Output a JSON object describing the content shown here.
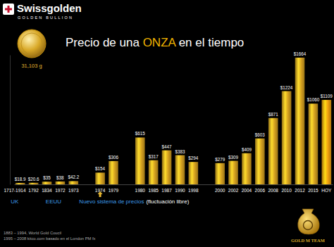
{
  "header": {
    "brand": "Swissgolden",
    "tagline": "GOLDEN BULLION",
    "coin_label": "31,103 g"
  },
  "footnotes": [
    "1883 – 1994, World Gold Coucil",
    "1995 – 2008 kitco.com basado en el London PM fx"
  ],
  "logo_text": "GOLD M TEAM",
  "chart_data": {
    "type": "bar",
    "title": "Precio de una ONZA en el tiempo",
    "categories": [
      "1717-1914",
      "1792",
      "1834",
      "1972",
      "1973",
      null,
      "1974",
      "1979",
      null,
      "1980",
      "1985",
      "1987",
      "1990",
      "1998",
      null,
      "2000",
      "2002",
      "2004",
      "2006",
      "2008",
      "2010",
      "2012",
      "2015",
      "HOY"
    ],
    "values": [
      18.9,
      20.6,
      35,
      38,
      42.2,
      null,
      154,
      306,
      null,
      615,
      317,
      447,
      383,
      294,
      null,
      279,
      309,
      409,
      603,
      871,
      1224,
      1664,
      1060,
      1109
    ],
    "value_labels": [
      "$18.9",
      "$20.6",
      "$35",
      "$38",
      "$42.2",
      null,
      "$154",
      "$306",
      null,
      "$615",
      "$317",
      "$447",
      "$383",
      "$294",
      null,
      "$279",
      "$309",
      "$409",
      "$603",
      "$871",
      "$1224",
      "$1664",
      "$1060",
      "$1109"
    ],
    "colors": [
      "#d4a020",
      "#d4a020",
      "#d4a020",
      "#d4a020",
      "#d4a020",
      null,
      "#d4a020",
      "#d4a020",
      null,
      "#d4a020",
      "#d4a020",
      "#d4a020",
      "#d4a020",
      "#d4a020",
      null,
      "#d4a020",
      "#d4a020",
      "#d4a020",
      "#d4a020",
      "#d4a020",
      "#d4a020",
      "#d4a020",
      "#d4a020",
      "#f0a010"
    ],
    "ylim": [
      0,
      1700
    ],
    "grid": false,
    "data_labels": true,
    "tick_labels": "x",
    "annotations": [
      "UK",
      "EEUU",
      "Nuevo sistema de precios",
      "(fluctuación libre)"
    ]
  }
}
